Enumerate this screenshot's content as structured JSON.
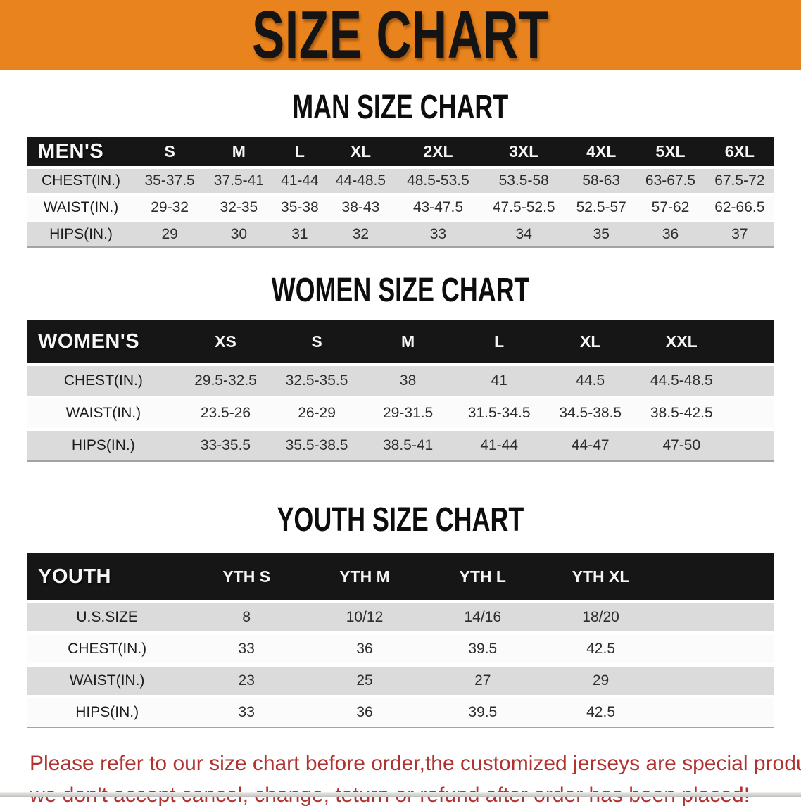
{
  "banner": {
    "title": "SIZE CHART",
    "bg_color": "#E8831D"
  },
  "sections": [
    {
      "heading": "MAN SIZE CHART",
      "table": {
        "label": "MEN'S",
        "columns": [
          "S",
          "M",
          "L",
          "XL",
          "2XL",
          "3XL",
          "4XL",
          "5XL",
          "6XL"
        ],
        "rows": [
          {
            "label": "CHEST(IN.)",
            "values": [
              "35-37.5",
              "37.5-41",
              "41-44",
              "44-48.5",
              "48.5-53.5",
              "53.5-58",
              "58-63",
              "63-67.5",
              "67.5-72"
            ]
          },
          {
            "label": "WAIST(IN.)",
            "values": [
              "29-32",
              "32-35",
              "35-38",
              "38-43",
              "43-47.5",
              "47.5-52.5",
              "52.5-57",
              "57-62",
              "62-66.5"
            ]
          },
          {
            "label": "HIPS(IN.)",
            "values": [
              "29",
              "30",
              "31",
              "32",
              "33",
              "34",
              "35",
              "36",
              "37"
            ]
          }
        ]
      }
    },
    {
      "heading": "WOMEN SIZE CHART",
      "table": {
        "label": "WOMEN'S",
        "columns": [
          "XS",
          "S",
          "M",
          "L",
          "XL",
          "XXL"
        ],
        "rows": [
          {
            "label": "CHEST(IN.)",
            "values": [
              "29.5-32.5",
              "32.5-35.5",
              "38",
              "41",
              "44.5",
              "44.5-48.5"
            ]
          },
          {
            "label": "WAIST(IN.)",
            "values": [
              "23.5-26",
              "26-29",
              "29-31.5",
              "31.5-34.5",
              "34.5-38.5",
              "38.5-42.5"
            ]
          },
          {
            "label": "HIPS(IN.)",
            "values": [
              "33-35.5",
              "35.5-38.5",
              "38.5-41",
              "41-44",
              "44-47",
              "47-50"
            ]
          }
        ]
      }
    },
    {
      "heading": "YOUTH SIZE CHART",
      "table": {
        "label": "YOUTH",
        "columns": [
          "YTH S",
          "YTH M",
          "YTH L",
          "YTH XL"
        ],
        "rows": [
          {
            "label": "U.S.SIZE",
            "values": [
              "8",
              "10/12",
              "14/16",
              "18/20"
            ]
          },
          {
            "label": "CHEST(IN.)",
            "values": [
              "33",
              "36",
              "39.5",
              "42.5"
            ]
          },
          {
            "label": "WAIST(IN.)",
            "values": [
              "23",
              "25",
              "27",
              "29"
            ]
          },
          {
            "label": "HIPS(IN.)",
            "values": [
              "33",
              "36",
              "39.5",
              "42.5"
            ]
          }
        ]
      }
    }
  ],
  "footer": {
    "line1": "Please refer to our size chart before order,the customized jerseys are special products,",
    "line2": "we don't accept cancel, change, teturn or refund after order has been placed!",
    "color": "#B23230"
  }
}
